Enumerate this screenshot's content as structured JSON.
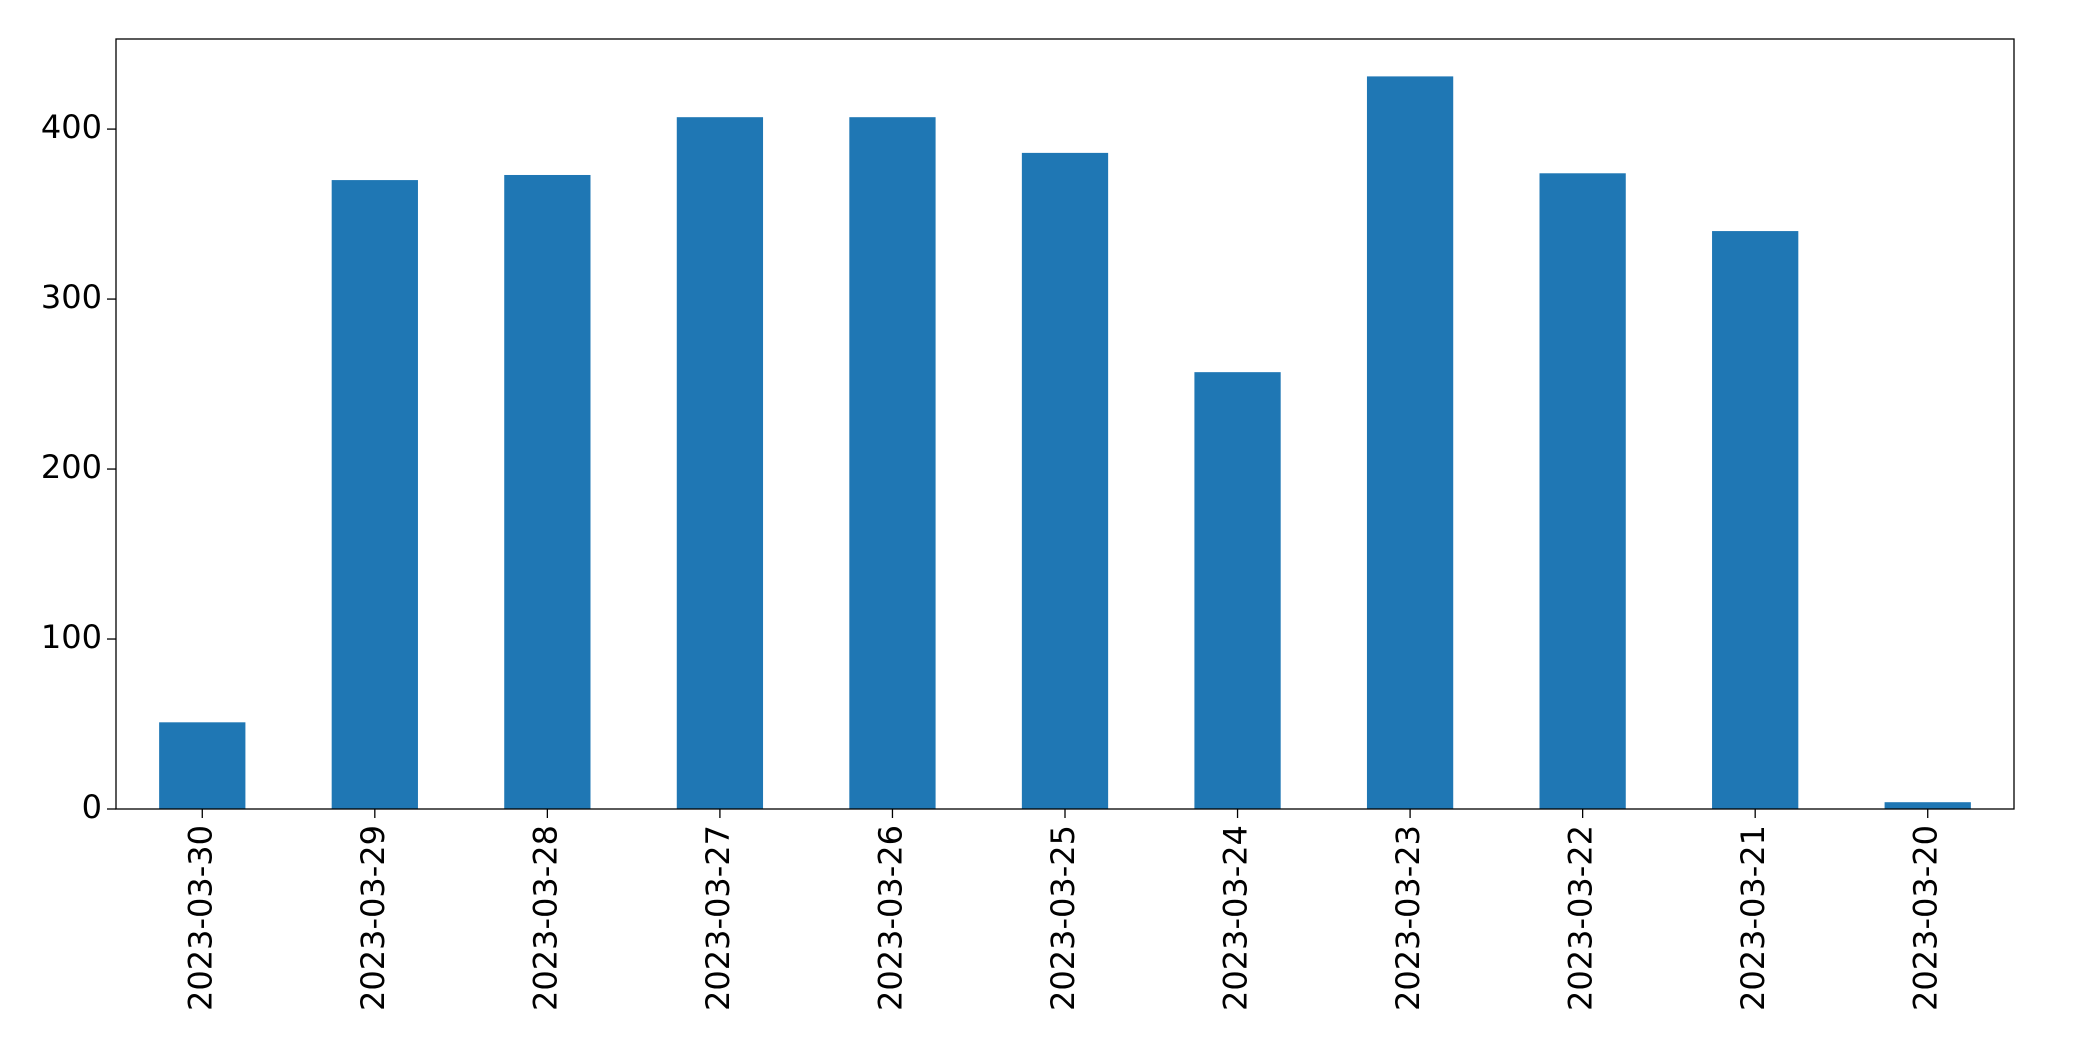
{
  "chart_data": {
    "type": "bar",
    "categories": [
      "2023-03-30",
      "2023-03-29",
      "2023-03-28",
      "2023-03-27",
      "2023-03-26",
      "2023-03-25",
      "2023-03-24",
      "2023-03-23",
      "2023-03-22",
      "2023-03-21",
      "2023-03-20"
    ],
    "values": [
      51,
      370,
      373,
      407,
      407,
      386,
      257,
      431,
      374,
      340,
      4
    ],
    "color": "#1f77b4",
    "ylim": [
      0,
      453
    ],
    "yticks": [
      0,
      100,
      200,
      300,
      400
    ],
    "grid": false
  }
}
